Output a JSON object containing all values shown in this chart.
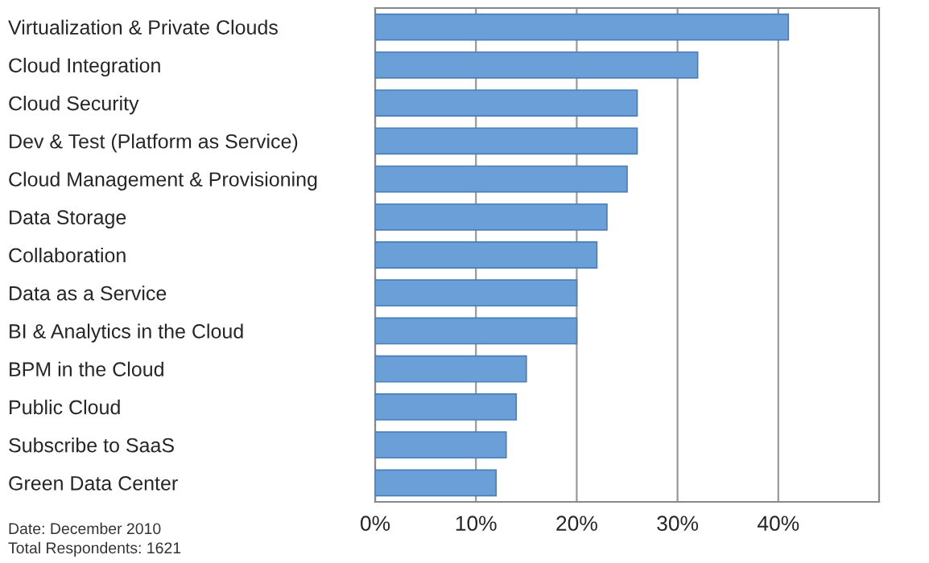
{
  "chart_data": {
    "type": "bar",
    "orientation": "horizontal",
    "categories": [
      "Virtualization & Private Clouds",
      "Cloud Integration",
      "Cloud Security",
      "Dev & Test (Platform as Service)",
      "Cloud Management & Provisioning",
      "Data Storage",
      "Collaboration",
      "Data as a Service",
      "BI & Analytics in the Cloud",
      "BPM in the Cloud",
      "Public Cloud",
      "Subscribe to SaaS",
      "Green Data Center"
    ],
    "values": [
      41,
      32,
      26,
      26,
      25,
      23,
      22,
      20,
      20,
      15,
      14,
      13,
      12
    ],
    "color": "#6a9fd8",
    "xlim": [
      0,
      50
    ],
    "xticks": [
      {
        "value": 0,
        "label": "0%"
      },
      {
        "value": 10,
        "label": "10%"
      },
      {
        "value": 20,
        "label": "20%"
      },
      {
        "value": 30,
        "label": "30%"
      },
      {
        "value": 40,
        "label": "40%"
      }
    ],
    "grid": "x",
    "annotations": [
      "Date: December 2010",
      "Total Respondents: 1621"
    ]
  }
}
